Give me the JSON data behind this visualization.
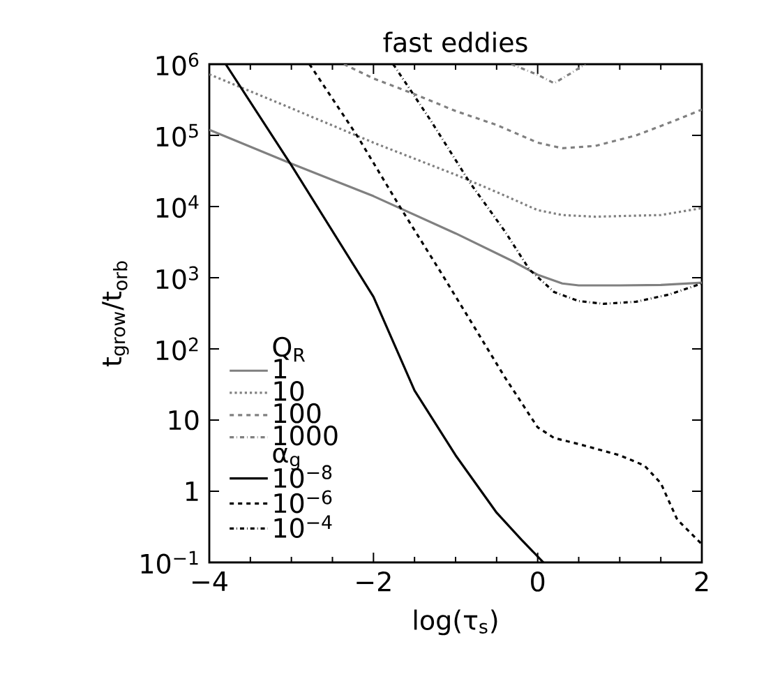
{
  "chart_data": {
    "type": "line",
    "title": "fast eddies",
    "xlabel": "log(τ$_{s}$)",
    "ylabel": "t$_{grow}$/t$_{orb}$",
    "legend_title": "Q$_{R}$",
    "annotations": [
      "α$_{g}$"
    ],
    "legend": "bottom left",
    "log": "y",
    "xlim": [
      -4,
      2
    ],
    "ylim": [
      0.1,
      1000000
    ],
    "xticks": [
      {
        "value": -4,
        "label": "−4"
      },
      {
        "value": -2,
        "label": "−2"
      },
      0,
      2
    ],
    "yticks": [
      {
        "value": 0.1,
        "label": "10$^{−1}$"
      },
      1,
      10,
      {
        "value": 100,
        "label": "10$^{2}$"
      },
      {
        "value": 1000,
        "label": "10$^{3}$"
      },
      {
        "value": 10000,
        "label": "10$^{4}$"
      },
      {
        "value": 100000,
        "label": "10$^{5}$"
      },
      {
        "value": 1000000,
        "label": "10$^{6}$"
      }
    ],
    "series": [
      {
        "name": "1",
        "color": "#808080",
        "line_style": "solid",
        "x": [
          -4,
          -3,
          -2,
          -1,
          -0.3,
          0,
          0.3,
          0.5,
          1,
          1.5,
          2
        ],
        "values": [
          120000,
          40000,
          14000,
          4200,
          1700,
          1100,
          830,
          780,
          780,
          790,
          850
        ]
      },
      {
        "name": "10",
        "color": "#808080",
        "line_style": "dotted",
        "x": [
          -4,
          -3,
          -2,
          -1,
          -0.5,
          0,
          0.3,
          0.7,
          1.5,
          2
        ],
        "values": [
          720000,
          240000,
          79000,
          28000,
          16000,
          8900,
          7600,
          7200,
          7600,
          9500
        ]
      },
      {
        "name": "100",
        "color": "#808080",
        "line_style": "dashed",
        "x": [
          -2.36,
          -2,
          -1.5,
          -1,
          -0.5,
          0,
          0.3,
          0.7,
          1.2,
          1.6,
          2
        ],
        "values": [
          1000000,
          630000,
          380000,
          220000,
          140000,
          79000,
          66000,
          71000,
          100000,
          150000,
          230000
        ]
      },
      {
        "name": "1000",
        "color": "#808080",
        "line_style": "dashdot",
        "x": [
          -0.32,
          0,
          0.2,
          0.4,
          0.58
        ],
        "values": [
          1000000,
          710000,
          540000,
          740000,
          1000000
        ]
      },
      {
        "name": "10$^{−8}$",
        "color": "#000000",
        "line_style": "solid",
        "x": [
          -3.8,
          -3,
          -2,
          -1.5,
          -1,
          -0.5,
          -0.2,
          0.07
        ],
        "values": [
          1000000,
          38000,
          540,
          26,
          3.2,
          0.5,
          0.21,
          0.1
        ]
      },
      {
        "name": "10$^{−6}$",
        "color": "#000000",
        "line_style": "dashed",
        "x": [
          -2.78,
          -2.19,
          -1.68,
          -1.2,
          -0.78,
          -0.4,
          0,
          0.2,
          0.5,
          1,
          1.3,
          1.5,
          1.7,
          2
        ],
        "values": [
          1000000,
          95000,
          10000,
          1300,
          210,
          40,
          7.9,
          5.6,
          4.6,
          3.2,
          2.3,
          1.3,
          0.4,
          0.18
        ]
      },
      {
        "name": "10$^{−4}$",
        "color": "#000000",
        "line_style": "dashdot",
        "x": [
          -1.76,
          -1.3,
          -0.83,
          -0.4,
          -0.1,
          0.2,
          0.5,
          0.8,
          1.2,
          1.6,
          2
        ],
        "values": [
          1000000,
          160000,
          22000,
          4500,
          1300,
          630,
          470,
          430,
          460,
          580,
          830
        ]
      }
    ]
  }
}
